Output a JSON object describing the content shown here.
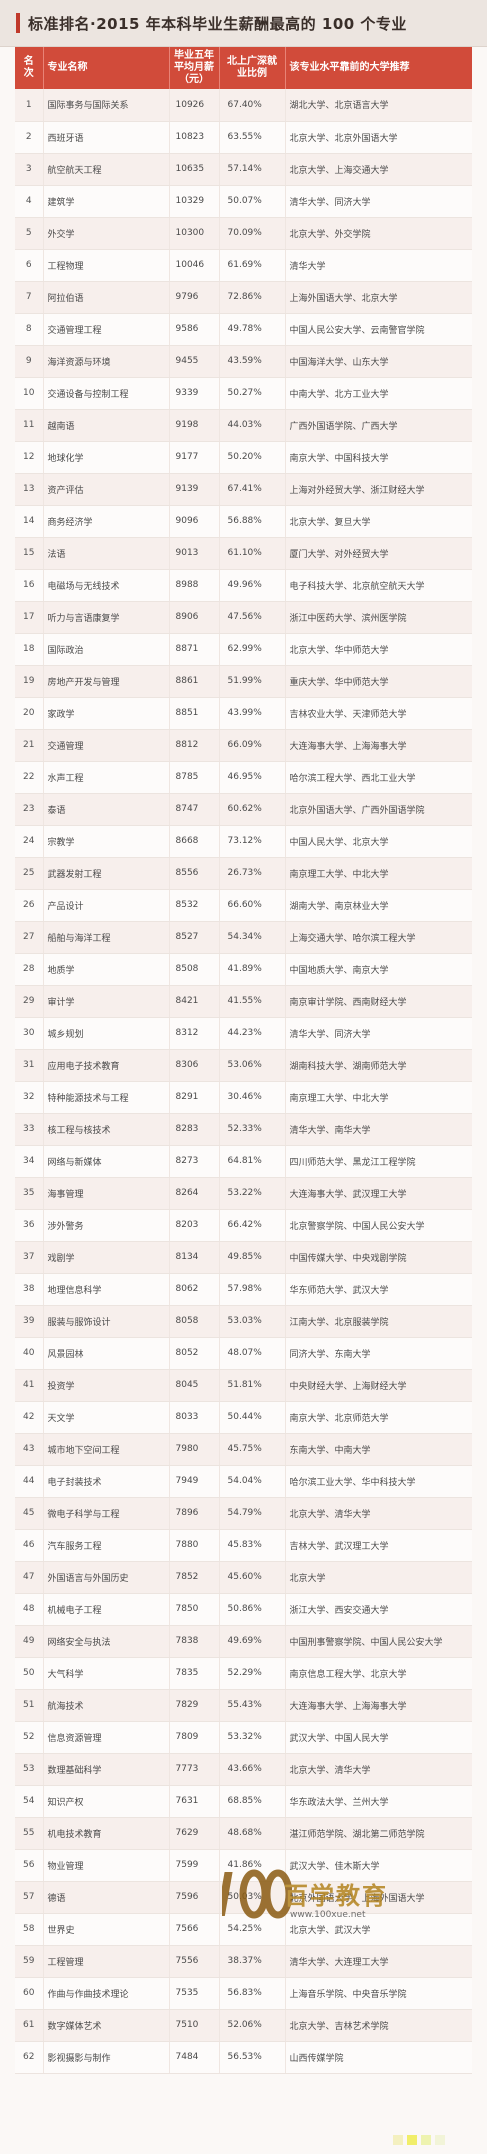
{
  "header": {
    "title_prefix": "标准排名·",
    "title_main": "2015 年本科毕业生薪酬最高的 100 个专业"
  },
  "columns": {
    "rank": "名次",
    "major": "专业名称",
    "salary": "毕业五年平均月薪（元）",
    "share": "北上广深就业比例",
    "recommend": "该专业水平靠前的大学推荐"
  },
  "rows": [
    [
      "1",
      "国际事务与国际关系",
      "10926",
      "67.40%",
      "湖北大学、北京语言大学"
    ],
    [
      "2",
      "西班牙语",
      "10823",
      "63.55%",
      "北京大学、北京外国语大学"
    ],
    [
      "3",
      "航空航天工程",
      "10635",
      "57.14%",
      "北京大学、上海交通大学"
    ],
    [
      "4",
      "建筑学",
      "10329",
      "50.07%",
      "清华大学、同济大学"
    ],
    [
      "5",
      "外交学",
      "10300",
      "70.09%",
      "北京大学、外交学院"
    ],
    [
      "6",
      "工程物理",
      "10046",
      "61.69%",
      "清华大学"
    ],
    [
      "7",
      "阿拉伯语",
      "9796",
      "72.86%",
      "上海外国语大学、北京大学"
    ],
    [
      "8",
      "交通管理工程",
      "9586",
      "49.78%",
      "中国人民公安大学、云南警官学院"
    ],
    [
      "9",
      "海洋资源与环境",
      "9455",
      "43.59%",
      "中国海洋大学、山东大学"
    ],
    [
      "10",
      "交通设备与控制工程",
      "9339",
      "50.27%",
      "中南大学、北方工业大学"
    ],
    [
      "11",
      "越南语",
      "9198",
      "44.03%",
      "广西外国语学院、广西大学"
    ],
    [
      "12",
      "地球化学",
      "9177",
      "50.20%",
      "南京大学、中国科技大学"
    ],
    [
      "13",
      "资产评估",
      "9139",
      "67.41%",
      "上海对外经贸大学、浙江财经大学"
    ],
    [
      "14",
      "商务经济学",
      "9096",
      "56.88%",
      "北京大学、复旦大学"
    ],
    [
      "15",
      "法语",
      "9013",
      "61.10%",
      "厦门大学、对外经贸大学"
    ],
    [
      "16",
      "电磁场与无线技术",
      "8988",
      "49.96%",
      "电子科技大学、北京航空航天大学"
    ],
    [
      "17",
      "听力与言语康复学",
      "8906",
      "47.56%",
      "浙江中医药大学、滨州医学院"
    ],
    [
      "18",
      "国际政治",
      "8871",
      "62.99%",
      "北京大学、华中师范大学"
    ],
    [
      "19",
      "房地产开发与管理",
      "8861",
      "51.99%",
      "重庆大学、华中师范大学"
    ],
    [
      "20",
      "家政学",
      "8851",
      "43.99%",
      "吉林农业大学、天津师范大学"
    ],
    [
      "21",
      "交通管理",
      "8812",
      "66.09%",
      "大连海事大学、上海海事大学"
    ],
    [
      "22",
      "水声工程",
      "8785",
      "46.95%",
      "哈尔滨工程大学、西北工业大学"
    ],
    [
      "23",
      "泰语",
      "8747",
      "60.62%",
      "北京外国语大学、广西外国语学院"
    ],
    [
      "24",
      "宗教学",
      "8668",
      "73.12%",
      "中国人民大学、北京大学"
    ],
    [
      "25",
      "武器发射工程",
      "8556",
      "26.73%",
      "南京理工大学、中北大学"
    ],
    [
      "26",
      "产品设计",
      "8532",
      "66.60%",
      "湖南大学、南京林业大学"
    ],
    [
      "27",
      "船舶与海洋工程",
      "8527",
      "54.34%",
      "上海交通大学、哈尔滨工程大学"
    ],
    [
      "28",
      "地质学",
      "8508",
      "41.89%",
      "中国地质大学、南京大学"
    ],
    [
      "29",
      "审计学",
      "8421",
      "41.55%",
      "南京审计学院、西南财经大学"
    ],
    [
      "30",
      "城乡规划",
      "8312",
      "44.23%",
      "清华大学、同济大学"
    ],
    [
      "31",
      "应用电子技术教育",
      "8306",
      "53.06%",
      "湖南科技大学、湖南师范大学"
    ],
    [
      "32",
      "特种能源技术与工程",
      "8291",
      "30.46%",
      "南京理工大学、中北大学"
    ],
    [
      "33",
      "核工程与核技术",
      "8283",
      "52.33%",
      "清华大学、南华大学"
    ],
    [
      "34",
      "网络与新媒体",
      "8273",
      "64.81%",
      "四川师范大学、黑龙江工程学院"
    ],
    [
      "35",
      "海事管理",
      "8264",
      "53.22%",
      "大连海事大学、武汉理工大学"
    ],
    [
      "36",
      "涉外警务",
      "8203",
      "66.42%",
      "北京警察学院、中国人民公安大学"
    ],
    [
      "37",
      "戏剧学",
      "8134",
      "49.85%",
      "中国传媒大学、中央戏剧学院"
    ],
    [
      "38",
      "地理信息科学",
      "8062",
      "57.98%",
      "华东师范大学、武汉大学"
    ],
    [
      "39",
      "服装与服饰设计",
      "8058",
      "53.03%",
      "江南大学、北京服装学院"
    ],
    [
      "40",
      "风景园林",
      "8052",
      "48.07%",
      "同济大学、东南大学"
    ],
    [
      "41",
      "投资学",
      "8045",
      "51.81%",
      "中央财经大学、上海财经大学"
    ],
    [
      "42",
      "天文学",
      "8033",
      "50.44%",
      "南京大学、北京师范大学"
    ],
    [
      "43",
      "城市地下空间工程",
      "7980",
      "45.75%",
      "东南大学、中南大学"
    ],
    [
      "44",
      "电子封装技术",
      "7949",
      "54.04%",
      "哈尔滨工业大学、华中科技大学"
    ],
    [
      "45",
      "微电子科学与工程",
      "7896",
      "54.79%",
      "北京大学、清华大学"
    ],
    [
      "46",
      "汽车服务工程",
      "7880",
      "45.83%",
      "吉林大学、武汉理工大学"
    ],
    [
      "47",
      "外国语言与外国历史",
      "7852",
      "45.60%",
      "北京大学"
    ],
    [
      "48",
      "机械电子工程",
      "7850",
      "50.86%",
      "浙江大学、西安交通大学"
    ],
    [
      "49",
      "网络安全与执法",
      "7838",
      "49.69%",
      "中国刑事警察学院、中国人民公安大学"
    ],
    [
      "50",
      "大气科学",
      "7835",
      "52.29%",
      "南京信息工程大学、北京大学"
    ],
    [
      "51",
      "航海技术",
      "7829",
      "55.43%",
      "大连海事大学、上海海事大学"
    ],
    [
      "52",
      "信息资源管理",
      "7809",
      "53.32%",
      "武汉大学、中国人民大学"
    ],
    [
      "53",
      "数理基础科学",
      "7773",
      "43.66%",
      "北京大学、清华大学"
    ],
    [
      "54",
      "知识产权",
      "7631",
      "68.85%",
      "华东政法大学、兰州大学"
    ],
    [
      "55",
      "机电技术教育",
      "7629",
      "48.68%",
      "湛江师范学院、湖北第二师范学院"
    ],
    [
      "56",
      "物业管理",
      "7599",
      "41.86%",
      "武汉大学、佳木斯大学"
    ],
    [
      "57",
      "德语",
      "7596",
      "50.03%",
      "北京外国语大学、上海外国语大学"
    ],
    [
      "58",
      "世界史",
      "7566",
      "54.25%",
      "北京大学、武汉大学"
    ],
    [
      "59",
      "工程管理",
      "7556",
      "38.37%",
      "清华大学、大连理工大学"
    ],
    [
      "60",
      "作曲与作曲技术理论",
      "7535",
      "56.83%",
      "上海音乐学院、中央音乐学院"
    ],
    [
      "61",
      "数字媒体艺术",
      "7510",
      "52.06%",
      "北京大学、吉林艺术学院"
    ],
    [
      "62",
      "影视摄影与制作",
      "7484",
      "56.53%",
      "山西传媒学院"
    ]
  ],
  "watermark": {
    "brand": "百学教育",
    "url": "www.100xue.net",
    "logo_icon": "100-logo-icon"
  },
  "colors": {
    "header_red": "#d14b3a",
    "row_odd": "#f7efec",
    "row_even": "#fdfbfa",
    "watermark_gold": "#b3841f"
  }
}
